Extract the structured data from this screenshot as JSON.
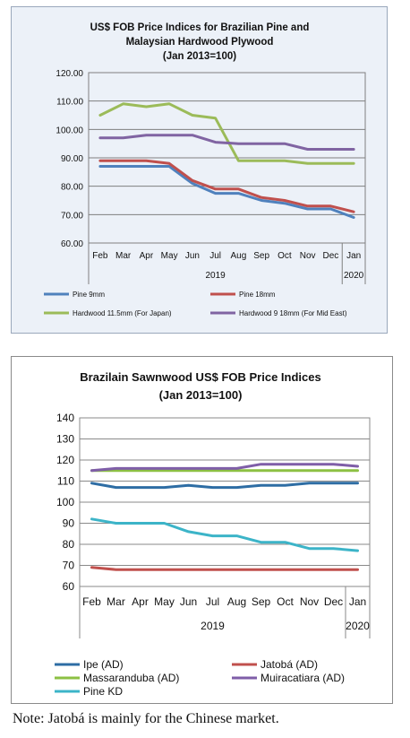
{
  "chart_data": [
    {
      "type": "line",
      "title_lines": [
        "US$ FOB Price Indices for Brazilian Pine and",
        "Malaysian Hardwood Plywood",
        "(Jan 2013=100)"
      ],
      "categories": [
        "Feb",
        "Mar",
        "Apr",
        "May",
        "Jun",
        "Jul",
        "Aug",
        "Sep",
        "Oct",
        "Nov",
        "Dec",
        "Jan"
      ],
      "year_labels": [
        "2019",
        "2020"
      ],
      "yticks": [
        "60.00",
        "70.00",
        "80.00",
        "90.00",
        "100.00",
        "110.00",
        "120.00"
      ],
      "ylim": [
        60,
        120
      ],
      "grid": "horizontal",
      "legend_position": "bottom",
      "series": [
        {
          "name": "Pine 9mm",
          "color": "#4f81bd",
          "values": [
            87,
            87,
            87,
            87,
            81,
            77.5,
            77.5,
            75,
            74,
            72,
            72,
            69
          ]
        },
        {
          "name": "Pine 18mm",
          "color": "#c0504d",
          "values": [
            89,
            89,
            89,
            88,
            82,
            79,
            79,
            76,
            75,
            73,
            73,
            71
          ]
        },
        {
          "name": "Hardwood 11.5mm (For Japan)",
          "color": "#9bbb59",
          "values": [
            105,
            109,
            108,
            109,
            105,
            104,
            89,
            89,
            89,
            88,
            88,
            88
          ]
        },
        {
          "name": "Hardwood 9 18mm (For Mid East)",
          "color": "#8064a2",
          "values": [
            97,
            97,
            98,
            98,
            98,
            95.5,
            95,
            95,
            95,
            93,
            93,
            93
          ]
        }
      ]
    },
    {
      "type": "line",
      "title_lines": [
        "Brazilain Sawnwood US$ FOB Price Indices",
        "(Jan 2013=100)"
      ],
      "categories": [
        "Feb",
        "Mar",
        "Apr",
        "May",
        "Jun",
        "Jul",
        "Aug",
        "Sep",
        "Oct",
        "Nov",
        "Dec",
        "Jan"
      ],
      "year_labels": [
        "2019",
        "2020"
      ],
      "yticks": [
        "60",
        "70",
        "80",
        "90",
        "100",
        "110",
        "120",
        "130",
        "140"
      ],
      "ylim": [
        60,
        140
      ],
      "grid": "horizontal",
      "legend_position": "bottom",
      "series": [
        {
          "name": "Ipe (AD)",
          "color": "#2e6da4",
          "values": [
            109,
            107,
            107,
            107,
            108,
            107,
            107,
            108,
            108,
            109,
            109,
            109
          ]
        },
        {
          "name": "Jatobá (AD)",
          "color": "#c0504d",
          "values": [
            69,
            68,
            68,
            68,
            68,
            68,
            68,
            68,
            68,
            68,
            68,
            68
          ]
        },
        {
          "name": "Massaranduba (AD)",
          "color": "#8cc043",
          "values": [
            115,
            115,
            115,
            115,
            115,
            115,
            115,
            115,
            115,
            115,
            115,
            115
          ]
        },
        {
          "name": "Muiracatiara (AD)",
          "color": "#7f5ea8",
          "values": [
            115,
            116,
            116,
            116,
            116,
            116,
            116,
            118,
            118,
            118,
            118,
            117
          ]
        },
        {
          "name": "Pine KD",
          "color": "#3cb4c8",
          "values": [
            92,
            90,
            90,
            90,
            86,
            84,
            84,
            81,
            81,
            78,
            78,
            77
          ]
        }
      ]
    }
  ],
  "note": "Note: Jatobá is mainly for the Chinese market."
}
